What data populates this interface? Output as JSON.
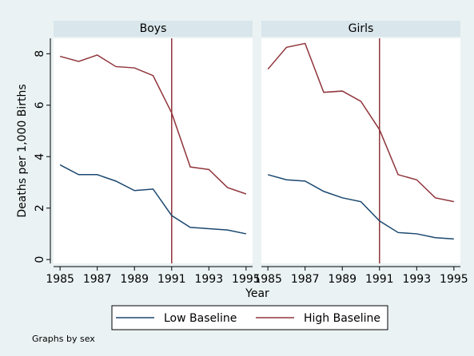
{
  "chart_data": {
    "type": "line",
    "ylabel": "Deaths per 1,000 Births",
    "xlabel": "Year",
    "note": "Graphs by sex",
    "x": [
      1985,
      1986,
      1987,
      1988,
      1989,
      1990,
      1991,
      1992,
      1993,
      1994,
      1995
    ],
    "xlim": [
      1984.65,
      1995.35
    ],
    "xticks": [
      1985,
      1987,
      1989,
      1991,
      1993,
      1995
    ],
    "ylim": [
      -0.15,
      8.6
    ],
    "yticks": [
      0,
      2,
      4,
      6,
      8
    ],
    "vline": 1991,
    "vline_color": "#90353b",
    "series": [
      {
        "name": "Low Baseline",
        "color": "#1a476f"
      },
      {
        "name": "High Baseline",
        "color": "#90353b"
      }
    ],
    "panels": [
      {
        "title": "Boys",
        "series": [
          {
            "values": [
              3.68,
              3.3,
              3.3,
              3.05,
              2.68,
              2.74,
              1.71,
              1.25,
              1.2,
              1.15,
              1.0
            ]
          },
          {
            "values": [
              7.9,
              7.7,
              7.95,
              7.5,
              7.45,
              7.15,
              5.7,
              3.6,
              3.5,
              2.8,
              2.55
            ]
          }
        ]
      },
      {
        "title": "Girls",
        "series": [
          {
            "values": [
              3.3,
              3.1,
              3.05,
              2.65,
              2.4,
              2.25,
              1.5,
              1.05,
              1.0,
              0.85,
              0.8
            ]
          },
          {
            "values": [
              7.4,
              8.25,
              8.4,
              6.5,
              6.55,
              6.15,
              5.05,
              3.3,
              3.1,
              2.4,
              2.25
            ]
          }
        ]
      }
    ]
  }
}
